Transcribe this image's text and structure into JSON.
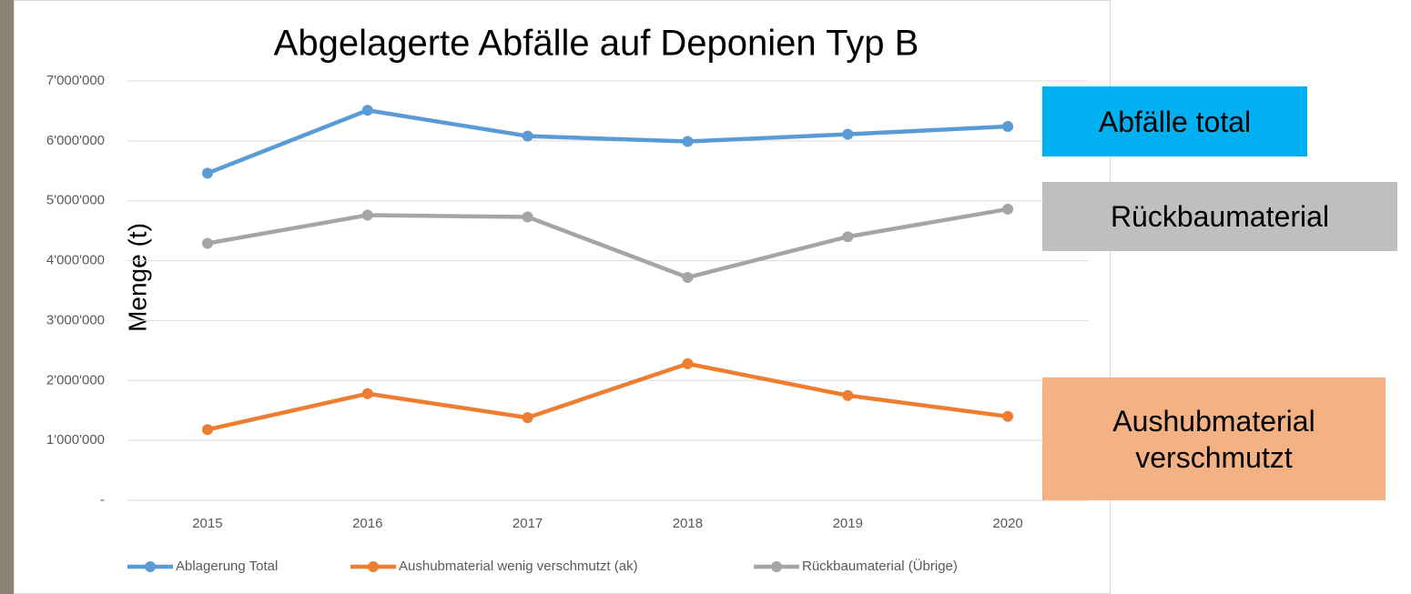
{
  "chart_data": {
    "type": "line",
    "title": "Abgelagerte Abfälle auf Deponien Typ B",
    "y_label": "Menge (t)",
    "categories": [
      "2015",
      "2016",
      "2017",
      "2018",
      "2019",
      "2020"
    ],
    "series": [
      {
        "name": "Ablagerung Total",
        "color": "#5b9bd5",
        "values": [
          5460000,
          6510000,
          6080000,
          5990000,
          6110000,
          6240000
        ]
      },
      {
        "name": "Aushubmaterial wenig verschmutzt (ak)",
        "color": "#ed7d31",
        "values": [
          1180000,
          1780000,
          1380000,
          2280000,
          1750000,
          1400000
        ]
      },
      {
        "name": "Rückbaumaterial (Übrige)",
        "color": "#a5a5a5",
        "values": [
          4290000,
          4760000,
          4730000,
          3720000,
          4400000,
          4860000
        ]
      }
    ],
    "ylim": [
      0,
      7000000
    ],
    "yticks": [
      {
        "value": 0,
        "label": "-"
      },
      {
        "value": 1000000,
        "label": "1'000'000"
      },
      {
        "value": 2000000,
        "label": "2'000'000"
      },
      {
        "value": 3000000,
        "label": "3'000'000"
      },
      {
        "value": 4000000,
        "label": "4'000'000"
      },
      {
        "value": 5000000,
        "label": "5'000'000"
      },
      {
        "value": 6000000,
        "label": "6'000'000"
      },
      {
        "value": 7000000,
        "label": "7'000'000"
      }
    ],
    "grid": true,
    "legend": "bottom",
    "annotations": [
      {
        "text": "Abfälle total",
        "color": "#00b0f0"
      },
      {
        "text": "Rückbaumaterial",
        "color": "#bfbfbf"
      },
      {
        "text": "Aushubmaterial verschmutzt",
        "color": "#f4b183"
      }
    ]
  }
}
